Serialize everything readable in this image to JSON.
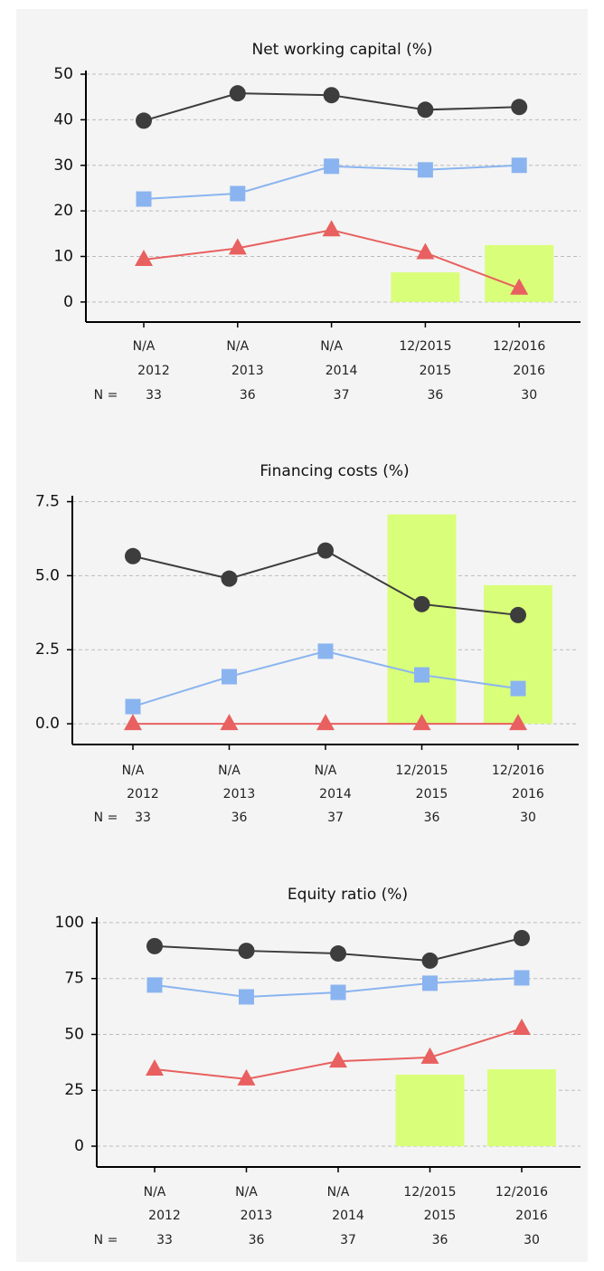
{
  "chart_data": [
    {
      "type": "line",
      "title": "Net working capital (%)",
      "categories": [
        "N/A",
        "N/A",
        "N/A",
        "12/2015",
        "12/2016"
      ],
      "years": [
        "2012",
        "2013",
        "2014",
        "2015",
        "2016"
      ],
      "n_label": "N =",
      "n": [
        33,
        36,
        37,
        36,
        30
      ],
      "ylim": [
        -4.4,
        50.8
      ],
      "yticks": [
        0,
        10,
        20,
        30,
        40,
        50
      ],
      "grid": true,
      "bars": {
        "color": "#d9ff7a",
        "values": [
          null,
          null,
          null,
          6.5,
          12.5
        ]
      },
      "series": [
        {
          "color": "#3d3d3d",
          "marker": "circle",
          "values": [
            39.8,
            45.8,
            45.4,
            42.2,
            42.8
          ]
        },
        {
          "color": "#8ab4f0",
          "marker": "square",
          "values": [
            22.6,
            23.8,
            29.8,
            29.0,
            30.0
          ]
        },
        {
          "color": "#e8605f",
          "marker": "triangle",
          "values": [
            9.3,
            11.8,
            15.8,
            10.8,
            3.0
          ]
        }
      ]
    },
    {
      "type": "line",
      "title": "Financing costs (%)",
      "categories": [
        "N/A",
        "N/A",
        "N/A",
        "12/2015",
        "12/2016"
      ],
      "years": [
        "2012",
        "2013",
        "2014",
        "2015",
        "2016"
      ],
      "n_label": "N =",
      "n": [
        33,
        36,
        37,
        36,
        30
      ],
      "ylim": [
        -0.7,
        7.7
      ],
      "yticks": [
        {
          "value": 0,
          "label": "0.0"
        },
        2.5,
        {
          "value": 5,
          "label": "5.0"
        },
        7.5
      ],
      "grid": true,
      "bars": {
        "color": "#d9ff7a",
        "values": [
          null,
          null,
          null,
          7.07,
          4.68
        ]
      },
      "series": [
        {
          "color": "#3d3d3d",
          "marker": "circle",
          "values": [
            5.66,
            4.9,
            5.85,
            4.04,
            3.67
          ]
        },
        {
          "color": "#8ab4f0",
          "marker": "square",
          "values": [
            0.58,
            1.59,
            2.45,
            1.65,
            1.19
          ]
        },
        {
          "color": "#e8605f",
          "marker": "triangle",
          "values": [
            0,
            0,
            0,
            0,
            0
          ]
        }
      ]
    },
    {
      "type": "line",
      "title": "Equity ratio (%)",
      "categories": [
        "N/A",
        "N/A",
        "N/A",
        "12/2015",
        "12/2016"
      ],
      "years": [
        "2012",
        "2013",
        "2014",
        "2015",
        "2016"
      ],
      "n_label": "N =",
      "n": [
        33,
        36,
        37,
        36,
        30
      ],
      "ylim": [
        -9.3,
        102.4
      ],
      "yticks": [
        0,
        25,
        50,
        75,
        100
      ],
      "grid": true,
      "bars": {
        "color": "#d9ff7a",
        "values": [
          null,
          null,
          null,
          32,
          34.4
        ]
      },
      "series": [
        {
          "color": "#3d3d3d",
          "marker": "circle",
          "values": [
            89.5,
            87.4,
            86.2,
            83,
            93.1
          ]
        },
        {
          "color": "#8ab4f0",
          "marker": "square",
          "values": [
            72.1,
            66.8,
            68.8,
            72.9,
            75.3
          ]
        },
        {
          "color": "#e8605f",
          "marker": "triangle",
          "values": [
            34.4,
            30,
            38,
            39.7,
            52.6
          ]
        }
      ]
    }
  ]
}
